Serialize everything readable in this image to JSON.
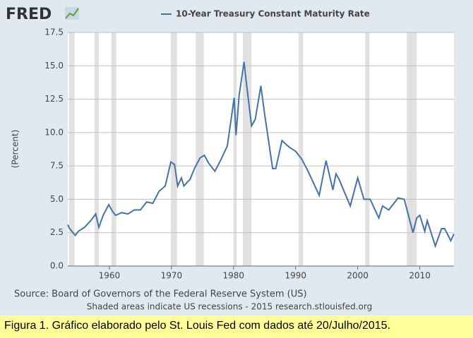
{
  "logo": "FRED",
  "chart_data": {
    "type": "line",
    "series": [
      {
        "name": "10-Year Treasury Constant Maturity Rate",
        "color": "#4572a7",
        "x": [
          1953.3,
          1953.6,
          1954.5,
          1955,
          1956,
          1957,
          1957.8,
          1958.3,
          1959,
          1959.9,
          1960.5,
          1961,
          1962,
          1963,
          1964,
          1965,
          1966,
          1967,
          1968,
          1969,
          1969.9,
          1970.5,
          1971,
          1971.6,
          1972,
          1973,
          1973.7,
          1974.6,
          1975.3,
          1976,
          1977,
          1978,
          1979,
          1980.1,
          1980.4,
          1980.9,
          1981.7,
          1982,
          1982.9,
          1983.5,
          1984.4,
          1985,
          1986.3,
          1986.8,
          1987.8,
          1988.5,
          1989,
          1990,
          1991,
          1992,
          1993.8,
          1994.9,
          1996,
          1996.5,
          1997,
          1998.8,
          2000,
          2001,
          2002,
          2003.4,
          2004,
          2005,
          2006.5,
          2007.5,
          2008.9,
          2009.5,
          2010,
          2010.8,
          2011.2,
          2012.5,
          2013.5,
          2014,
          2015,
          2015.5
        ],
        "values": [
          3.1,
          2.8,
          2.3,
          2.6,
          2.9,
          3.4,
          3.9,
          2.9,
          3.8,
          4.6,
          4.1,
          3.8,
          4.0,
          3.9,
          4.2,
          4.2,
          4.8,
          4.7,
          5.6,
          6.0,
          7.8,
          7.6,
          6.0,
          6.6,
          6.0,
          6.5,
          7.3,
          8.1,
          8.3,
          7.7,
          7.1,
          8.0,
          9.0,
          12.6,
          9.8,
          12.8,
          15.3,
          14.0,
          10.5,
          11.0,
          13.5,
          11.4,
          7.3,
          7.3,
          9.4,
          9.1,
          8.9,
          8.6,
          8.0,
          7.1,
          5.3,
          7.9,
          5.7,
          6.9,
          6.5,
          4.5,
          6.6,
          5.0,
          5.0,
          3.6,
          4.5,
          4.2,
          5.1,
          5.0,
          2.5,
          3.6,
          3.8,
          2.6,
          3.4,
          1.5,
          2.8,
          2.8,
          1.9,
          2.4
        ]
      }
    ],
    "recessions": [
      [
        1953.5,
        1954.4
      ],
      [
        1957.6,
        1958.3
      ],
      [
        1960.3,
        1961.1
      ],
      [
        1969.9,
        1970.9
      ],
      [
        1973.9,
        1975.2
      ],
      [
        1980.0,
        1980.5
      ],
      [
        1981.5,
        1982.9
      ],
      [
        1990.5,
        1991.2
      ],
      [
        2001.2,
        2001.9
      ],
      [
        2007.9,
        2009.5
      ]
    ],
    "ylabel": "(Percent)",
    "xlim": [
      1953.3,
      2015.5
    ],
    "xticks": [
      1960,
      1970,
      1980,
      1990,
      2000,
      2010
    ],
    "ylim": [
      0,
      17.5
    ],
    "yticks": [
      {
        "value": 0,
        "label": "0.0"
      },
      2.5,
      {
        "value": 5,
        "label": "5.0"
      },
      7.5,
      {
        "value": 10,
        "label": "10.0"
      },
      12.5,
      {
        "value": 15,
        "label": "15.0"
      },
      17.5
    ],
    "grid": true,
    "source": "Source: Board of Governors of the Federal Reserve System (US)",
    "note": "Shaded areas indicate US recessions - 2015 research.stlouisfed.org"
  },
  "caption": "Figura 1. Gráfico elaborado pelo St. Louis Fed com dados até 20/Julho/2015."
}
